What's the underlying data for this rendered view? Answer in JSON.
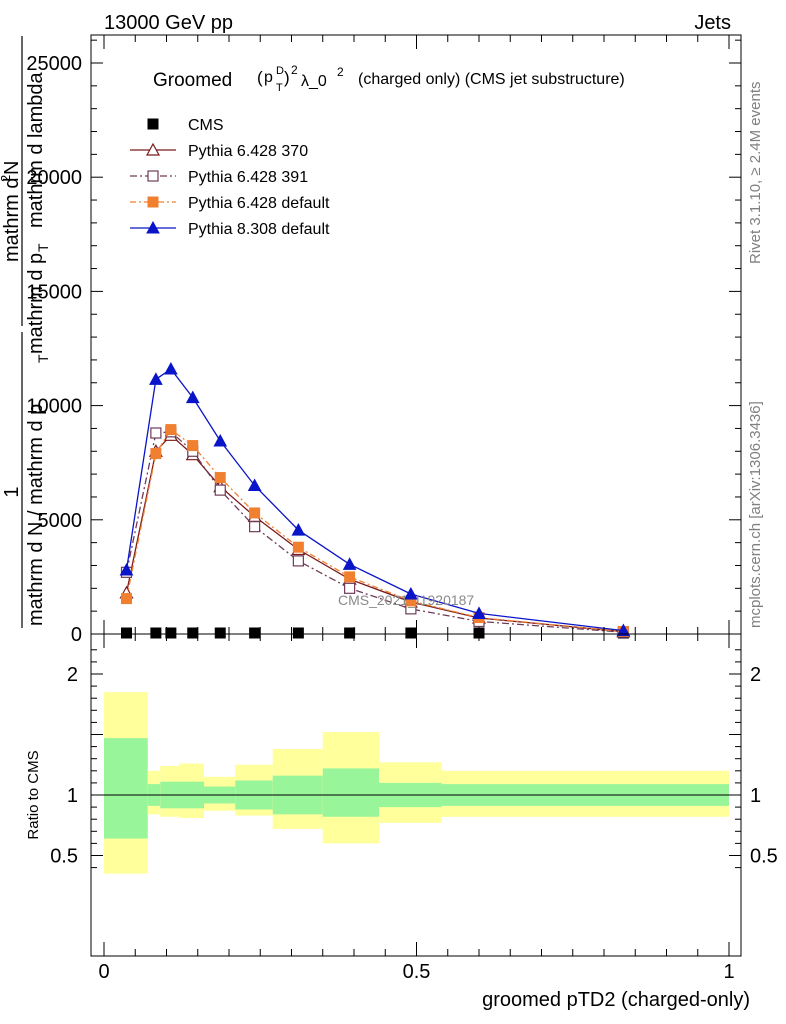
{
  "header": {
    "left": "13000 GeV pp",
    "right": "Jets"
  },
  "side": {
    "rivet": "Rivet 3.1.10, ≥ 2.4M events",
    "mcplots": "mcplots.cern.ch [arXiv:1306.3436]"
  },
  "title": {
    "main": "Groomed",
    "math_p": "p",
    "math_D": "D",
    "math_T": "T",
    "math_sup": "2",
    "math_lambda": "λ_0",
    "math_sup2": "2",
    "suffix": "(charged only) (CMS jet substructure)"
  },
  "watermark": "CMS_2021_I1920187",
  "ylabel": {
    "prefix_num": "1",
    "prefix_den": "mathrm d N / mathrm d p",
    "prefix_den_sub": "T",
    "main_num": "mathrm d",
    "main_num_sup": "2",
    "main_num_n": "N",
    "main_den": "mathrm d p",
    "main_den_sub": "T",
    "main_den_rest": "mathrm d lambda"
  },
  "ratio_ylabel": "Ratio to CMS",
  "xlabel": "groomed pTD2 (charged-only)",
  "chart_data": {
    "type": "line",
    "xlim": [
      0,
      1
    ],
    "main": {
      "ylim": [
        0,
        26000
      ],
      "yticks": [
        0,
        5000,
        10000,
        15000,
        20000,
        25000
      ],
      "yticklabels": [
        "0",
        "5000",
        "10000",
        "15000",
        "20000",
        "25000"
      ]
    },
    "ratio": {
      "ylim": [
        0.35,
        2.25
      ],
      "yticks": [
        0.5,
        1,
        2
      ],
      "yticklabels": [
        "0.5",
        "1",
        "2"
      ],
      "bands": [
        {
          "x0": 0.0,
          "x1": 0.07,
          "g0": 0.64,
          "g1": 1.47,
          "y0": 0.35,
          "y1": 1.85
        },
        {
          "x0": 0.07,
          "x1": 0.09,
          "g0": 0.91,
          "g1": 1.09,
          "y0": 0.84,
          "y1": 1.2
        },
        {
          "x0": 0.09,
          "x1": 0.12,
          "g0": 0.89,
          "g1": 1.11,
          "y0": 0.82,
          "y1": 1.24
        },
        {
          "x0": 0.12,
          "x1": 0.16,
          "g0": 0.89,
          "g1": 1.11,
          "y0": 0.81,
          "y1": 1.26
        },
        {
          "x0": 0.16,
          "x1": 0.21,
          "g0": 0.93,
          "g1": 1.07,
          "y0": 0.87,
          "y1": 1.15
        },
        {
          "x0": 0.21,
          "x1": 0.27,
          "g0": 0.88,
          "g1": 1.12,
          "y0": 0.83,
          "y1": 1.25
        },
        {
          "x0": 0.27,
          "x1": 0.35,
          "g0": 0.84,
          "g1": 1.16,
          "y0": 0.72,
          "y1": 1.38
        },
        {
          "x0": 0.35,
          "x1": 0.44,
          "g0": 0.82,
          "g1": 1.22,
          "y0": 0.6,
          "y1": 1.52
        },
        {
          "x0": 0.44,
          "x1": 0.54,
          "g0": 0.9,
          "g1": 1.1,
          "y0": 0.77,
          "y1": 1.27
        },
        {
          "x0": 0.54,
          "x1": 1.0,
          "g0": 0.91,
          "g1": 1.09,
          "y0": 0.82,
          "y1": 1.2
        }
      ]
    },
    "xticks": [
      0,
      0.5,
      1
    ],
    "xticklabels": [
      "0",
      "0.5",
      "1"
    ],
    "series": [
      {
        "name": "CMS",
        "color": "#000000",
        "marker": "square-filled",
        "x": [
          0.036,
          0.083,
          0.107,
          0.142,
          0.186,
          0.241,
          0.311,
          0.393,
          0.491,
          0.6,
          0.831
        ],
        "y": [
          30,
          30,
          30,
          30,
          30,
          30,
          30,
          30,
          30,
          30,
          30
        ]
      },
      {
        "name": "Pythia 6.428 370",
        "color": "#7a1a1a",
        "marker": "triangle-open",
        "dash": "",
        "x": [
          0.036,
          0.083,
          0.107,
          0.142,
          0.186,
          0.241,
          0.311,
          0.393,
          0.491,
          0.6,
          0.831
        ],
        "y": [
          1800,
          8000,
          8700,
          7850,
          6450,
          5150,
          3700,
          2400,
          1400,
          700,
          100
        ]
      },
      {
        "name": "Pythia 6.428 391",
        "color": "#6e3c5a",
        "marker": "square-open",
        "dash": "7,3,2,3",
        "x": [
          0.036,
          0.083,
          0.107,
          0.142,
          0.186,
          0.241,
          0.311,
          0.393,
          0.491,
          0.6,
          0.831
        ],
        "y": [
          2700,
          8800,
          8850,
          8000,
          6300,
          4700,
          3200,
          2000,
          1100,
          550,
          80
        ]
      },
      {
        "name": "Pythia 6.428 default",
        "color": "#f08030",
        "marker": "square-filled",
        "dash": "6,3,2,3",
        "x": [
          0.036,
          0.083,
          0.107,
          0.142,
          0.186,
          0.241,
          0.311,
          0.393,
          0.491,
          0.6,
          0.831
        ],
        "y": [
          1550,
          7900,
          8950,
          8250,
          6850,
          5300,
          3800,
          2500,
          1450,
          720,
          110
        ]
      },
      {
        "name": "Pythia 8.308 default",
        "color": "#0a14c8",
        "marker": "triangle-filled",
        "dash": "",
        "x": [
          0.036,
          0.083,
          0.107,
          0.142,
          0.186,
          0.241,
          0.311,
          0.393,
          0.491,
          0.6,
          0.831
        ],
        "y": [
          2800,
          11150,
          11600,
          10350,
          8450,
          6500,
          4550,
          3050,
          1750,
          900,
          150
        ]
      }
    ]
  }
}
